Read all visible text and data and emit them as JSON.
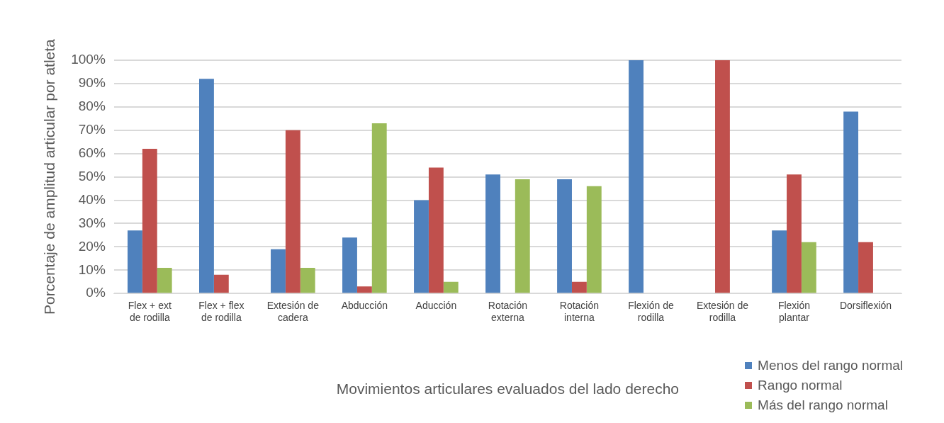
{
  "chart_data": {
    "type": "bar",
    "xlabel": "Movimientos articulares evaluados del lado derecho",
    "ylabel": "Porcentaje de amplitud articular por atleta",
    "categories": [
      "Flex + ext de rodilla",
      "Flex + flex de rodilla",
      "Extesión de cadera",
      "Abducción",
      "Aducción",
      "Rotación externa",
      "Rotación interna",
      "Flexión de rodilla",
      "Extesión de rodilla",
      "Flexión plantar",
      "Dorsiflexión"
    ],
    "series": [
      {
        "name": "Menos del rango normal",
        "color": "#4f81bd",
        "values": [
          27,
          92,
          19,
          24,
          40,
          51,
          49,
          100,
          0,
          27,
          78
        ]
      },
      {
        "name": "Rango normal",
        "color": "#c0504d",
        "values": [
          62,
          8,
          70,
          3,
          54,
          0,
          5,
          0,
          100,
          51,
          22
        ]
      },
      {
        "name": "Más del rango normal",
        "color": "#9bbb59",
        "values": [
          11,
          0,
          11,
          73,
          5,
          49,
          46,
          0,
          0,
          22,
          0
        ]
      }
    ],
    "ylim": [
      0,
      100
    ],
    "yticks": [
      {
        "value": 0,
        "label": "0%"
      },
      {
        "value": 10,
        "label": "10%"
      },
      {
        "value": 20,
        "label": "20%"
      },
      {
        "value": 30,
        "label": "30%"
      },
      {
        "value": 40,
        "label": "40%"
      },
      {
        "value": 50,
        "label": "50%"
      },
      {
        "value": 60,
        "label": "60%"
      },
      {
        "value": 70,
        "label": "70%"
      },
      {
        "value": 80,
        "label": "80%"
      },
      {
        "value": 90,
        "label": "90%"
      },
      {
        "value": 100,
        "label": "100%"
      }
    ],
    "grid": "y",
    "legend": "bottom right"
  }
}
